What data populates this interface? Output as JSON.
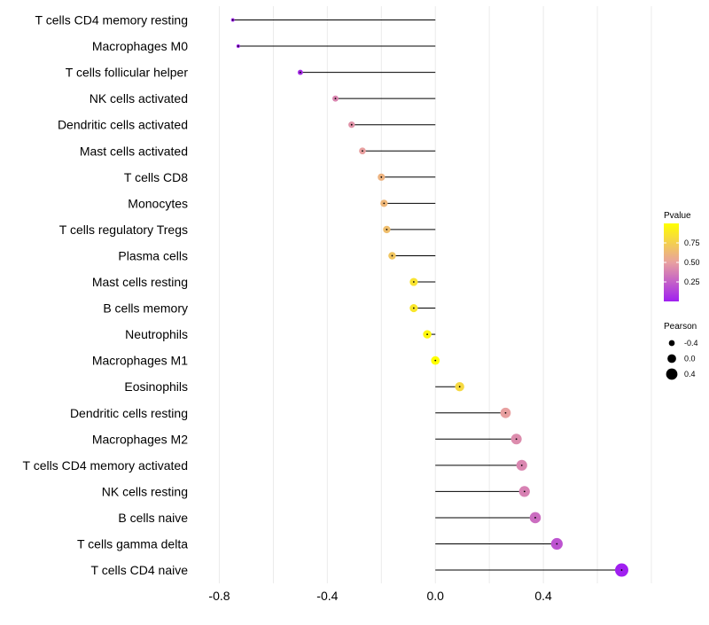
{
  "chart_data": {
    "type": "lollipop",
    "title": "",
    "xlabel": "",
    "ylabel": "",
    "xlim": [
      -0.9,
      0.8
    ],
    "xticks": [
      "-0.8",
      "-0.4",
      "0.0",
      "0.4"
    ],
    "xtick_values": [
      -0.8,
      -0.4,
      0.0,
      0.4
    ],
    "grid": true,
    "categories": [
      "T cells CD4 memory resting",
      "Macrophages M0",
      "T cells follicular helper",
      "NK cells activated",
      "Dendritic cells activated",
      "Mast cells activated",
      "T cells CD8",
      "Monocytes",
      "T cells regulatory  Tregs",
      "Plasma cells",
      "Mast cells resting",
      "B cells memory",
      "Neutrophils",
      "Macrophages M1",
      "Eosinophils",
      "Dendritic cells resting",
      "Macrophages M2",
      "T cells CD4 memory activated",
      "NK cells resting",
      "B cells naive",
      "T cells gamma delta",
      "T cells CD4 naive"
    ],
    "pearson": [
      -0.75,
      -0.73,
      -0.5,
      -0.37,
      -0.31,
      -0.27,
      -0.2,
      -0.19,
      -0.18,
      -0.16,
      -0.08,
      -0.08,
      -0.03,
      0.0,
      0.09,
      0.26,
      0.3,
      0.32,
      0.33,
      0.37,
      0.45,
      0.69
    ],
    "pvalue": [
      0.0,
      0.0,
      0.05,
      0.4,
      0.45,
      0.5,
      0.6,
      0.62,
      0.66,
      0.7,
      0.85,
      0.87,
      0.95,
      1.0,
      0.8,
      0.5,
      0.42,
      0.4,
      0.38,
      0.3,
      0.2,
      0.0
    ],
    "legend": {
      "color_title": "Pvalue",
      "color_ticks": [
        "0.75",
        "0.50",
        "0.25"
      ],
      "color_tick_values": [
        0.75,
        0.5,
        0.25
      ],
      "color_low": "#a020f0",
      "color_mid": "#e8a0a0",
      "color_high": "#ffff00",
      "size_title": "Pearson",
      "size_ticks": [
        "-0.4",
        "0.0",
        "0.4"
      ],
      "size_tick_values": [
        -0.4,
        0.0,
        0.4
      ]
    },
    "colors": {
      "line": "#000000",
      "grid": "#ebebeb",
      "background": "#ffffff"
    }
  }
}
